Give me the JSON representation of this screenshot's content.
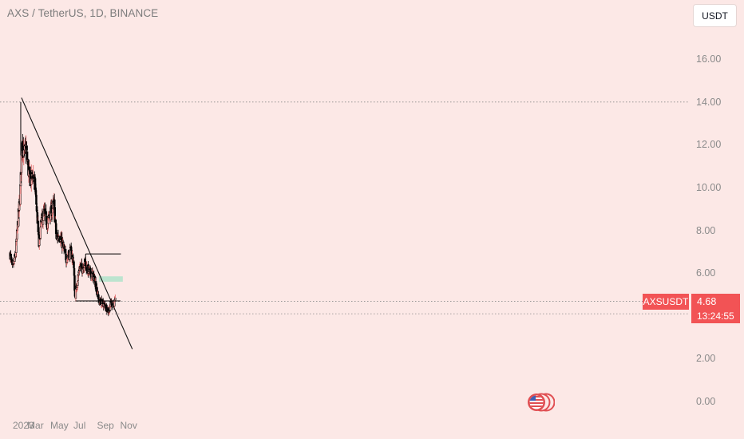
{
  "header": {
    "title": "AXS / TetherUS, 1D, BINANCE"
  },
  "currency_button": {
    "label": "USDT"
  },
  "y_axis": {
    "ticks": [
      "16.00",
      "14.00",
      "12.00",
      "10.00",
      "8.00",
      "6.00",
      "2.00",
      "0.00"
    ]
  },
  "x_axis": {
    "ticks": [
      "2023",
      "Mar",
      "May",
      "Jul",
      "Sep",
      "Nov"
    ]
  },
  "price_tag": {
    "symbol": "AXSUSDT",
    "price": "4.68",
    "countdown": "13:24:55"
  },
  "colors": {
    "background": "#fce8e6",
    "candles": "#000000",
    "up_wick_tint": "#e06060",
    "price_tag": "#f25355",
    "target_zone": "#b5e3cc"
  },
  "icons": {
    "economic_event": "us-flag-icon"
  },
  "chart_data": {
    "type": "candlestick",
    "title": "AXS / TetherUS, 1D, BINANCE",
    "ylim": [
      0,
      17
    ],
    "x_range": [
      "2022-12-25",
      "2023-11-10"
    ],
    "x_tick_labels": [
      "2023",
      "Mar",
      "May",
      "Jul",
      "Sep",
      "Nov"
    ],
    "y_tick_labels": [
      "16.00",
      "14.00",
      "12.00",
      "10.00",
      "8.00",
      "6.00",
      "2.00",
      "0.00"
    ],
    "last_price": 4.68,
    "close_path": [
      [
        "2022-12-25",
        6.9
      ],
      [
        "2022-12-31",
        6.2
      ],
      [
        "2023-01-08",
        6.8
      ],
      [
        "2023-01-15",
        8.5
      ],
      [
        "2023-01-20",
        9.5
      ],
      [
        "2023-01-26",
        12.3
      ],
      [
        "2023-01-30",
        11.5
      ],
      [
        "2023-02-05",
        11.9
      ],
      [
        "2023-02-11",
        10.8
      ],
      [
        "2023-02-17",
        10.3
      ],
      [
        "2023-02-23",
        10.7
      ],
      [
        "2023-03-01",
        10.0
      ],
      [
        "2023-03-07",
        8.5
      ],
      [
        "2023-03-11",
        7.3
      ],
      [
        "2023-03-17",
        8.4
      ],
      [
        "2023-03-25",
        8.8
      ],
      [
        "2023-04-02",
        8.3
      ],
      [
        "2023-04-10",
        8.8
      ],
      [
        "2023-04-20",
        9.2
      ],
      [
        "2023-04-26",
        7.6
      ],
      [
        "2023-05-04",
        7.8
      ],
      [
        "2023-05-14",
        7.2
      ],
      [
        "2023-05-22",
        6.7
      ],
      [
        "2023-06-02",
        7.0
      ],
      [
        "2023-06-10",
        6.6
      ],
      [
        "2023-06-14",
        4.9
      ],
      [
        "2023-06-20",
        5.6
      ],
      [
        "2023-06-26",
        6.3
      ],
      [
        "2023-07-03",
        6.2
      ],
      [
        "2023-07-10",
        6.5
      ],
      [
        "2023-07-16",
        6.2
      ],
      [
        "2023-07-24",
        6.0
      ],
      [
        "2023-07-31",
        5.9
      ],
      [
        "2023-08-06",
        5.6
      ],
      [
        "2023-08-16",
        4.7
      ],
      [
        "2023-08-26",
        4.6
      ],
      [
        "2023-09-05",
        4.4
      ],
      [
        "2023-09-11",
        4.2
      ],
      [
        "2023-09-17",
        4.6
      ],
      [
        "2023-09-23",
        4.55
      ],
      [
        "2023-09-28",
        4.68
      ]
    ],
    "annotations": {
      "descending_trendline": [
        [
          "2023-01-24",
          14.2
        ],
        [
          "2023-11-12",
          2.45
        ]
      ],
      "horizontal_levels": [
        14.0,
        4.68,
        4.1
      ],
      "resistance_box": {
        "from": "2023-07-12",
        "to": "2023-10-13",
        "top": 6.9,
        "bottom": 6.2
      },
      "support_line": {
        "from": "2023-06-15",
        "to": "2023-10-12",
        "value": 4.7
      },
      "target_zone": {
        "from": "2023-08-16",
        "to": "2023-10-18",
        "top": 5.85,
        "bottom": 5.6
      }
    }
  }
}
